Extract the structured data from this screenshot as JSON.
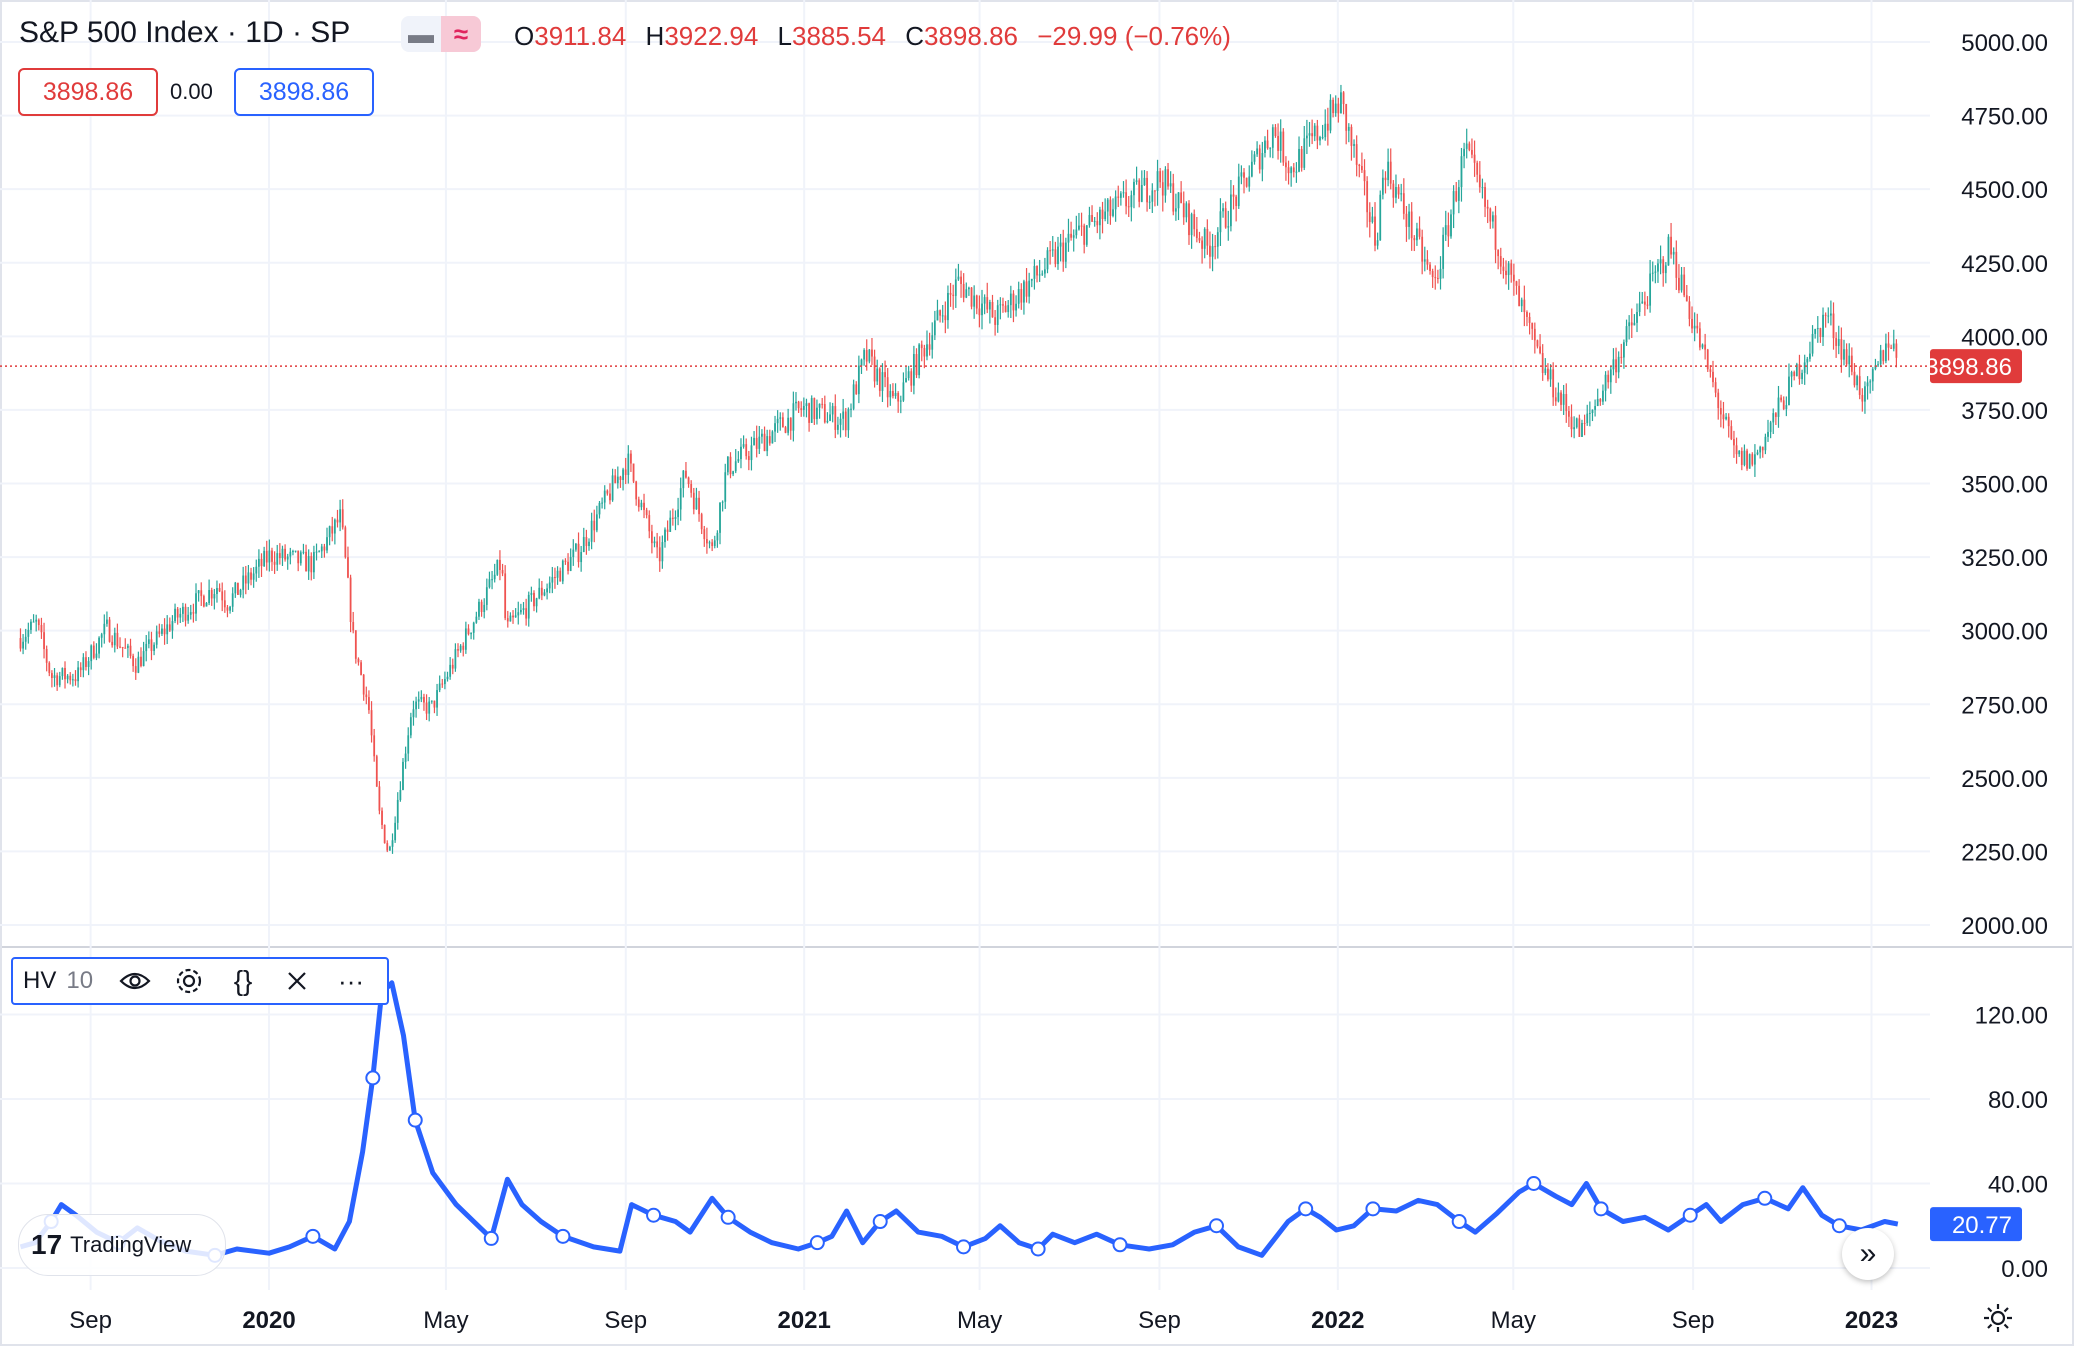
{
  "header": {
    "title": "S&P 500 Index · 1D · SP",
    "ohlc": {
      "o_label": "O",
      "o": "3911.84",
      "h_label": "H",
      "h": "3922.94",
      "l_label": "L",
      "l": "3885.54",
      "c_label": "C",
      "c": "3898.86",
      "change": "−29.99 (−0.76%)"
    },
    "price_box_left": "3898.86",
    "spread": "0.00",
    "price_box_right": "3898.86"
  },
  "indicator": {
    "name": "HV",
    "length": "10"
  },
  "watermark": "TradingView",
  "colors": {
    "up": "#26a69a",
    "down": "#ef5350",
    "hv_line": "#2962ff",
    "last_price": "#e03b3b",
    "grid": "#f0f3fa"
  },
  "chart_data": [
    {
      "type": "candlestick",
      "title": "S&P 500 Index · 1D · SP",
      "y_ticks": [
        "5000.00",
        "4750.00",
        "4500.00",
        "4250.00",
        "4000.00",
        "3750.00",
        "3500.00",
        "3250.00",
        "3000.00",
        "2750.00",
        "2500.00",
        "2250.00",
        "2000.00"
      ],
      "ylim": [
        2000,
        5000
      ],
      "last_price": 3898.86,
      "last_price_label": "3898.86",
      "x_ticks": [
        "Sep",
        "2020",
        "May",
        "Sep",
        "2021",
        "May",
        "Sep",
        "2022",
        "May",
        "Sep",
        "2023"
      ],
      "x_tick_dates": [
        "2019-09",
        "2020-01",
        "2020-05",
        "2020-09",
        "2021-01",
        "2021-05",
        "2021-09",
        "2022-01",
        "2022-05",
        "2022-09",
        "2023-01"
      ],
      "grid": true,
      "close_path": [
        {
          "x": "2019-07-15",
          "y": 2975
        },
        {
          "x": "2019-07-26",
          "y": 3025
        },
        {
          "x": "2019-08-05",
          "y": 2844
        },
        {
          "x": "2019-08-23",
          "y": 2847
        },
        {
          "x": "2019-09-12",
          "y": 3009
        },
        {
          "x": "2019-10-02",
          "y": 2887
        },
        {
          "x": "2019-10-28",
          "y": 3039
        },
        {
          "x": "2019-11-27",
          "y": 3153
        },
        {
          "x": "2019-12-03",
          "y": 3093
        },
        {
          "x": "2020-01-02",
          "y": 3258
        },
        {
          "x": "2020-01-31",
          "y": 3226
        },
        {
          "x": "2020-02-19",
          "y": 3386
        },
        {
          "x": "2020-02-28",
          "y": 2954
        },
        {
          "x": "2020-03-09",
          "y": 2746
        },
        {
          "x": "2020-03-16",
          "y": 2386
        },
        {
          "x": "2020-03-23",
          "y": 2237
        },
        {
          "x": "2020-04-08",
          "y": 2750
        },
        {
          "x": "2020-04-21",
          "y": 2737
        },
        {
          "x": "2020-06-08",
          "y": 3232
        },
        {
          "x": "2020-06-11",
          "y": 3002
        },
        {
          "x": "2020-07-31",
          "y": 3271
        },
        {
          "x": "2020-09-02",
          "y": 3580
        },
        {
          "x": "2020-09-23",
          "y": 3237
        },
        {
          "x": "2020-10-12",
          "y": 3534
        },
        {
          "x": "2020-10-30",
          "y": 3270
        },
        {
          "x": "2020-11-09",
          "y": 3550
        },
        {
          "x": "2020-12-31",
          "y": 3756
        },
        {
          "x": "2021-01-29",
          "y": 3714
        },
        {
          "x": "2021-02-12",
          "y": 3934
        },
        {
          "x": "2021-03-04",
          "y": 3768
        },
        {
          "x": "2021-04-16",
          "y": 4185
        },
        {
          "x": "2021-05-12",
          "y": 4063
        },
        {
          "x": "2021-07-06",
          "y": 4343
        },
        {
          "x": "2021-09-02",
          "y": 4537
        },
        {
          "x": "2021-10-04",
          "y": 4300
        },
        {
          "x": "2021-11-18",
          "y": 4704
        },
        {
          "x": "2021-11-30",
          "y": 4567
        },
        {
          "x": "2022-01-03",
          "y": 4796
        },
        {
          "x": "2022-01-27",
          "y": 4326
        },
        {
          "x": "2022-02-02",
          "y": 4589
        },
        {
          "x": "2022-03-08",
          "y": 4170
        },
        {
          "x": "2022-03-29",
          "y": 4631
        },
        {
          "x": "2022-05-20",
          "y": 3901
        },
        {
          "x": "2022-06-16",
          "y": 3667
        },
        {
          "x": "2022-08-16",
          "y": 4305
        },
        {
          "x": "2022-09-30",
          "y": 3586
        },
        {
          "x": "2022-10-12",
          "y": 3577
        },
        {
          "x": "2022-12-01",
          "y": 4077
        },
        {
          "x": "2022-12-28",
          "y": 3783
        },
        {
          "x": "2023-01-13",
          "y": 3999
        },
        {
          "x": "2023-01-18",
          "y": 3929
        },
        {
          "x": "2023-01-19",
          "y": 3898.86
        }
      ]
    },
    {
      "type": "line",
      "title": "HV 10",
      "y_ticks": [
        "120.00",
        "80.00",
        "40.00",
        "0.00"
      ],
      "ylim": [
        0,
        140
      ],
      "last_value": 20.77,
      "last_value_label": "20.77",
      "series": [
        {
          "values": [
            {
              "x": "2019-07-15",
              "y": 10
            },
            {
              "x": "2019-07-25",
              "y": 12
            },
            {
              "x": "2019-08-05",
              "y": 22
            },
            {
              "x": "2019-08-12",
              "y": 30
            },
            {
              "x": "2019-08-22",
              "y": 25
            },
            {
              "x": "2019-09-05",
              "y": 17
            },
            {
              "x": "2019-09-20",
              "y": 12
            },
            {
              "x": "2019-10-03",
              "y": 19
            },
            {
              "x": "2019-10-18",
              "y": 13
            },
            {
              "x": "2019-11-05",
              "y": 8
            },
            {
              "x": "2019-11-25",
              "y": 6
            },
            {
              "x": "2019-12-10",
              "y": 9
            },
            {
              "x": "2020-01-01",
              "y": 7
            },
            {
              "x": "2020-01-15",
              "y": 10
            },
            {
              "x": "2020-01-31",
              "y": 15
            },
            {
              "x": "2020-02-15",
              "y": 9
            },
            {
              "x": "2020-02-25",
              "y": 22
            },
            {
              "x": "2020-03-05",
              "y": 55
            },
            {
              "x": "2020-03-12",
              "y": 90
            },
            {
              "x": "2020-03-18",
              "y": 130
            },
            {
              "x": "2020-03-25",
              "y": 135
            },
            {
              "x": "2020-04-02",
              "y": 110
            },
            {
              "x": "2020-04-10",
              "y": 70
            },
            {
              "x": "2020-04-22",
              "y": 45
            },
            {
              "x": "2020-05-08",
              "y": 30
            },
            {
              "x": "2020-05-20",
              "y": 22
            },
            {
              "x": "2020-06-01",
              "y": 14
            },
            {
              "x": "2020-06-12",
              "y": 42
            },
            {
              "x": "2020-06-22",
              "y": 30
            },
            {
              "x": "2020-07-05",
              "y": 22
            },
            {
              "x": "2020-07-20",
              "y": 15
            },
            {
              "x": "2020-08-10",
              "y": 10
            },
            {
              "x": "2020-08-28",
              "y": 8
            },
            {
              "x": "2020-09-05",
              "y": 30
            },
            {
              "x": "2020-09-20",
              "y": 25
            },
            {
              "x": "2020-10-05",
              "y": 22
            },
            {
              "x": "2020-10-15",
              "y": 17
            },
            {
              "x": "2020-10-30",
              "y": 33
            },
            {
              "x": "2020-11-10",
              "y": 24
            },
            {
              "x": "2020-11-25",
              "y": 17
            },
            {
              "x": "2020-12-10",
              "y": 12
            },
            {
              "x": "2020-12-28",
              "y": 9
            },
            {
              "x": "2021-01-10",
              "y": 12
            },
            {
              "x": "2021-01-20",
              "y": 15
            },
            {
              "x": "2021-01-30",
              "y": 27
            },
            {
              "x": "2021-02-10",
              "y": 12
            },
            {
              "x": "2021-02-22",
              "y": 22
            },
            {
              "x": "2021-03-05",
              "y": 27
            },
            {
              "x": "2021-03-20",
              "y": 17
            },
            {
              "x": "2021-04-05",
              "y": 15
            },
            {
              "x": "2021-04-20",
              "y": 10
            },
            {
              "x": "2021-05-05",
              "y": 14
            },
            {
              "x": "2021-05-15",
              "y": 20
            },
            {
              "x": "2021-05-28",
              "y": 12
            },
            {
              "x": "2021-06-10",
              "y": 9
            },
            {
              "x": "2021-06-20",
              "y": 16
            },
            {
              "x": "2021-07-05",
              "y": 12
            },
            {
              "x": "2021-07-20",
              "y": 16
            },
            {
              "x": "2021-08-05",
              "y": 11
            },
            {
              "x": "2021-08-25",
              "y": 9
            },
            {
              "x": "2021-09-10",
              "y": 11
            },
            {
              "x": "2021-09-25",
              "y": 17
            },
            {
              "x": "2021-10-10",
              "y": 20
            },
            {
              "x": "2021-10-25",
              "y": 10
            },
            {
              "x": "2021-11-10",
              "y": 6
            },
            {
              "x": "2021-11-28",
              "y": 22
            },
            {
              "x": "2021-12-10",
              "y": 28
            },
            {
              "x": "2021-12-20",
              "y": 24
            },
            {
              "x": "2021-12-31",
              "y": 18
            },
            {
              "x": "2022-01-12",
              "y": 20
            },
            {
              "x": "2022-01-25",
              "y": 28
            },
            {
              "x": "2022-02-10",
              "y": 27
            },
            {
              "x": "2022-02-25",
              "y": 32
            },
            {
              "x": "2022-03-10",
              "y": 30
            },
            {
              "x": "2022-03-25",
              "y": 22
            },
            {
              "x": "2022-04-05",
              "y": 17
            },
            {
              "x": "2022-04-20",
              "y": 26
            },
            {
              "x": "2022-05-05",
              "y": 36
            },
            {
              "x": "2022-05-15",
              "y": 40
            },
            {
              "x": "2022-05-30",
              "y": 34
            },
            {
              "x": "2022-06-10",
              "y": 30
            },
            {
              "x": "2022-06-20",
              "y": 40
            },
            {
              "x": "2022-06-30",
              "y": 28
            },
            {
              "x": "2022-07-15",
              "y": 22
            },
            {
              "x": "2022-07-30",
              "y": 24
            },
            {
              "x": "2022-08-15",
              "y": 18
            },
            {
              "x": "2022-08-30",
              "y": 25
            },
            {
              "x": "2022-09-10",
              "y": 30
            },
            {
              "x": "2022-09-20",
              "y": 22
            },
            {
              "x": "2022-10-05",
              "y": 30
            },
            {
              "x": "2022-10-20",
              "y": 33
            },
            {
              "x": "2022-11-05",
              "y": 28
            },
            {
              "x": "2022-11-15",
              "y": 38
            },
            {
              "x": "2022-11-28",
              "y": 25
            },
            {
              "x": "2022-12-10",
              "y": 20
            },
            {
              "x": "2022-12-25",
              "y": 18
            },
            {
              "x": "2023-01-10",
              "y": 22
            },
            {
              "x": "2023-01-19",
              "y": 20.77
            }
          ]
        }
      ],
      "markers_every_n_points": 4
    }
  ]
}
